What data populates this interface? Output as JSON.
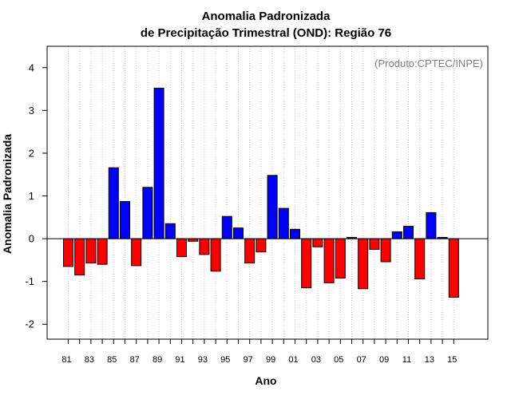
{
  "chart_data": {
    "type": "bar",
    "title_line1": "Anomalia Padronizada",
    "title_line2": "de Precipitação Trimestral (OND): Região 76",
    "xlabel": "Ano",
    "ylabel": "Anomalia Padronizada",
    "credit": "(Produto:CPTEC/INPE)",
    "ylim": [
      -2.35,
      4.5
    ],
    "yticks": [
      "-2",
      "-1",
      "0",
      "1",
      "2",
      "3",
      "4"
    ],
    "positive_color": "#0000ff",
    "negative_color": "#ff0000",
    "grid": true,
    "categories": [
      "81",
      "82",
      "83",
      "84",
      "85",
      "86",
      "87",
      "88",
      "89",
      "90",
      "91",
      "92",
      "93",
      "94",
      "95",
      "96",
      "97",
      "98",
      "99",
      "00",
      "01",
      "02",
      "03",
      "04",
      "05",
      "06",
      "07",
      "08",
      "09",
      "10",
      "11",
      "12",
      "13",
      "14",
      "15"
    ],
    "xtick_labels": [
      "81",
      "83",
      "85",
      "87",
      "89",
      "91",
      "93",
      "95",
      "97",
      "99",
      "01",
      "03",
      "05",
      "07",
      "09",
      "11",
      "13",
      "15"
    ],
    "values": [
      -0.65,
      -0.85,
      -0.57,
      -0.6,
      1.66,
      0.87,
      -0.63,
      1.2,
      3.52,
      0.35,
      -0.42,
      -0.06,
      -0.37,
      -0.76,
      0.52,
      0.25,
      -0.57,
      -0.31,
      1.48,
      0.71,
      0.22,
      -1.15,
      -0.19,
      -1.03,
      -0.92,
      0.03,
      -1.17,
      -0.25,
      -0.54,
      0.16,
      0.29,
      -0.94,
      0.61,
      0.03,
      -1.37
    ]
  }
}
